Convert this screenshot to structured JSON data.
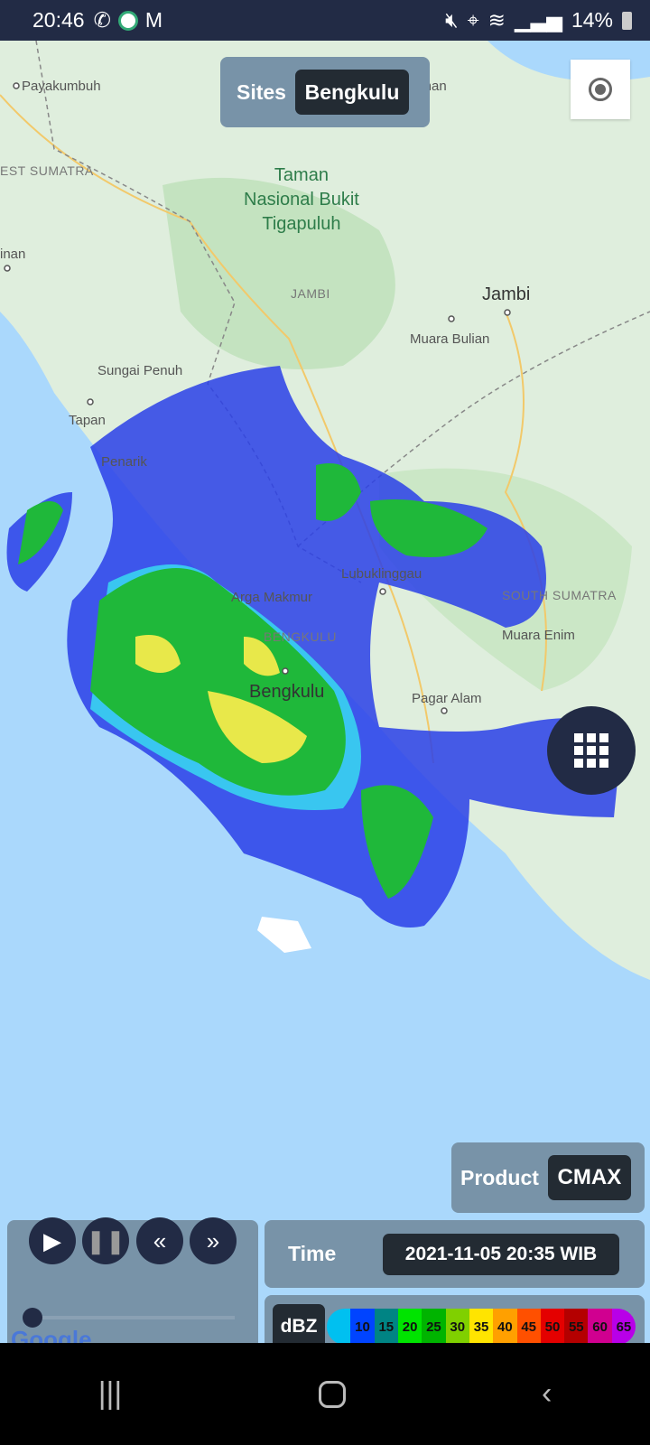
{
  "status_bar": {
    "time": "20:46",
    "battery": "14%",
    "left_icons": [
      "whatsapp-icon",
      "bmkg-icon",
      "gmail-icon"
    ],
    "right_icons": [
      "mute-icon",
      "location-icon",
      "wifi-icon",
      "signal-icon",
      "battery-icon"
    ]
  },
  "map": {
    "labels": {
      "payakumbuh": "Payakumbuh",
      "tembilahan": "Tembilahan",
      "west_sumatra": "EST SUMATRA",
      "park": "Taman\nNasional Bukit\nTigapuluh",
      "inan": "inan",
      "jambi_state": "JAMBI",
      "jambi": "Jambi",
      "muara_bulian": "Muara Bulian",
      "sungai_penuh": "Sungai Penuh",
      "tapan": "Tapan",
      "penarik": "Penarik",
      "lubuklinggau": "Lubuklinggau",
      "south_sumatra": "SOUTH SUMATRA",
      "arga_makmur": "Arga Makmur",
      "bengkulu_state": "BENGKULU",
      "muara_enim": "Muara Enim",
      "bengkulu": "Bengkulu",
      "pagar_alam": "Pagar Alam"
    },
    "attribution": "Google"
  },
  "sites": {
    "label": "Sites",
    "value": "Bengkulu"
  },
  "product": {
    "label": "Product",
    "value": "CMAX"
  },
  "time": {
    "label": "Time",
    "value": "2021-11-05 20:35 WIB"
  },
  "legend": {
    "unit": "dBZ",
    "stops": [
      {
        "v": "",
        "c": "#00c0f0"
      },
      {
        "v": "10",
        "c": "#0044ff"
      },
      {
        "v": "15",
        "c": "#008484"
      },
      {
        "v": "20",
        "c": "#00e400"
      },
      {
        "v": "25",
        "c": "#00b400"
      },
      {
        "v": "30",
        "c": "#80d000"
      },
      {
        "v": "35",
        "c": "#ffe400"
      },
      {
        "v": "40",
        "c": "#ffa000"
      },
      {
        "v": "45",
        "c": "#ff5000"
      },
      {
        "v": "50",
        "c": "#e40000"
      },
      {
        "v": "55",
        "c": "#b40000"
      },
      {
        "v": "60",
        "c": "#d00090"
      },
      {
        "v": "65",
        "c": "#b800e8"
      }
    ]
  },
  "playback": {
    "progress": 0
  }
}
